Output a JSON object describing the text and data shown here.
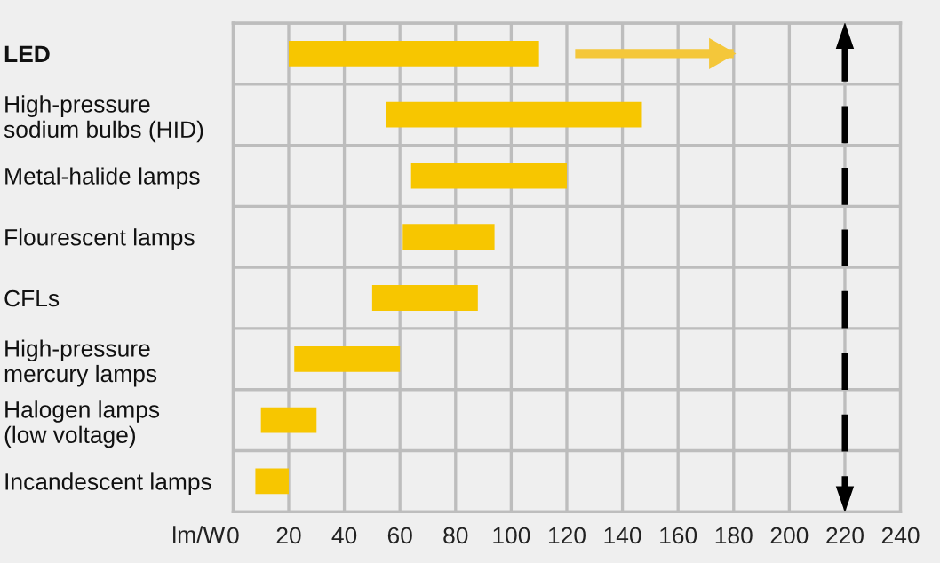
{
  "chart_data": {
    "type": "bar",
    "orientation": "horizontal",
    "xlabel": "lm/W",
    "categories": [
      "LED",
      "High-pressure\nsodium bulbs (HID)",
      "Metal-halide lamps",
      "Flourescent lamps",
      "CFLs",
      "High-pressure\nmercury lamps",
      "Halogen lamps\n(low voltage)",
      "Incandescent lamps"
    ],
    "series": [
      {
        "color": "#f7c600",
        "base": [
          20,
          55,
          64,
          61,
          50,
          22,
          10,
          8
        ],
        "values": [
          90,
          92,
          56,
          33,
          38,
          38,
          20,
          12
        ]
      },
      {
        "color": "#f4c73a",
        "base": [
          123,
          null,
          null,
          null,
          null,
          null,
          null,
          null
        ],
        "values": [
          57,
          null,
          null,
          null,
          null,
          null,
          null,
          null
        ]
      }
    ],
    "xlim": [
      0,
      240
    ],
    "xticks": [
      0,
      20,
      40,
      60,
      80,
      100,
      120,
      140,
      160,
      180,
      200,
      220,
      240
    ],
    "ref_lines": [
      {
        "axis": "x",
        "value": 220,
        "color": "#000000",
        "line_style": "dashed"
      }
    ],
    "grid": true
  }
}
